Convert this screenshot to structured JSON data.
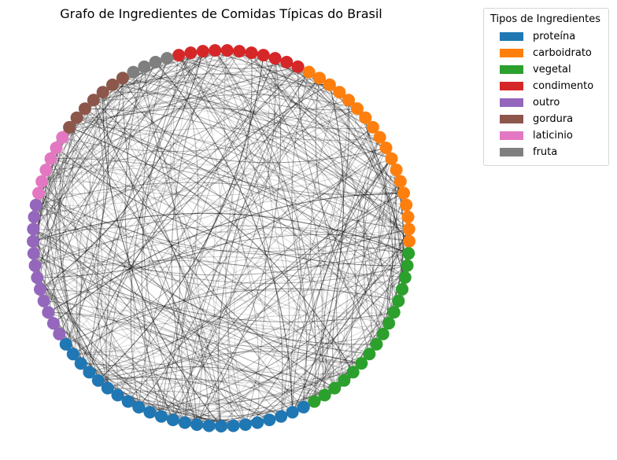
{
  "title": "Grafo de Ingredientes de Comidas Típicas do Brasil",
  "legend": {
    "title": "Tipos de Ingredientes",
    "items": [
      {
        "label": "proteína",
        "color": "#1f77b4"
      },
      {
        "label": "carboidrato",
        "color": "#ff7f0e"
      },
      {
        "label": "vegetal",
        "color": "#2ca02c"
      },
      {
        "label": "condimento",
        "color": "#d62728"
      },
      {
        "label": "outro",
        "color": "#9467bd"
      },
      {
        "label": "gordura",
        "color": "#8c564b"
      },
      {
        "label": "laticinio",
        "color": "#e377c2"
      },
      {
        "label": "fruta",
        "color": "#7f7f7f"
      }
    ]
  },
  "graph": {
    "layout": "circular",
    "edge_style": "curved",
    "edge_color": "#000000",
    "node_groups": [
      {
        "type": "condimento",
        "count": 11
      },
      {
        "type": "carboidrato",
        "count": 18
      },
      {
        "type": "vegetal",
        "count": 16
      },
      {
        "type": "proteína",
        "count": 23
      },
      {
        "type": "outro",
        "count": 12
      },
      {
        "type": "laticinio",
        "count": 6
      },
      {
        "type": "gordura",
        "count": 7
      },
      {
        "type": "fruta",
        "count": 4
      }
    ]
  }
}
